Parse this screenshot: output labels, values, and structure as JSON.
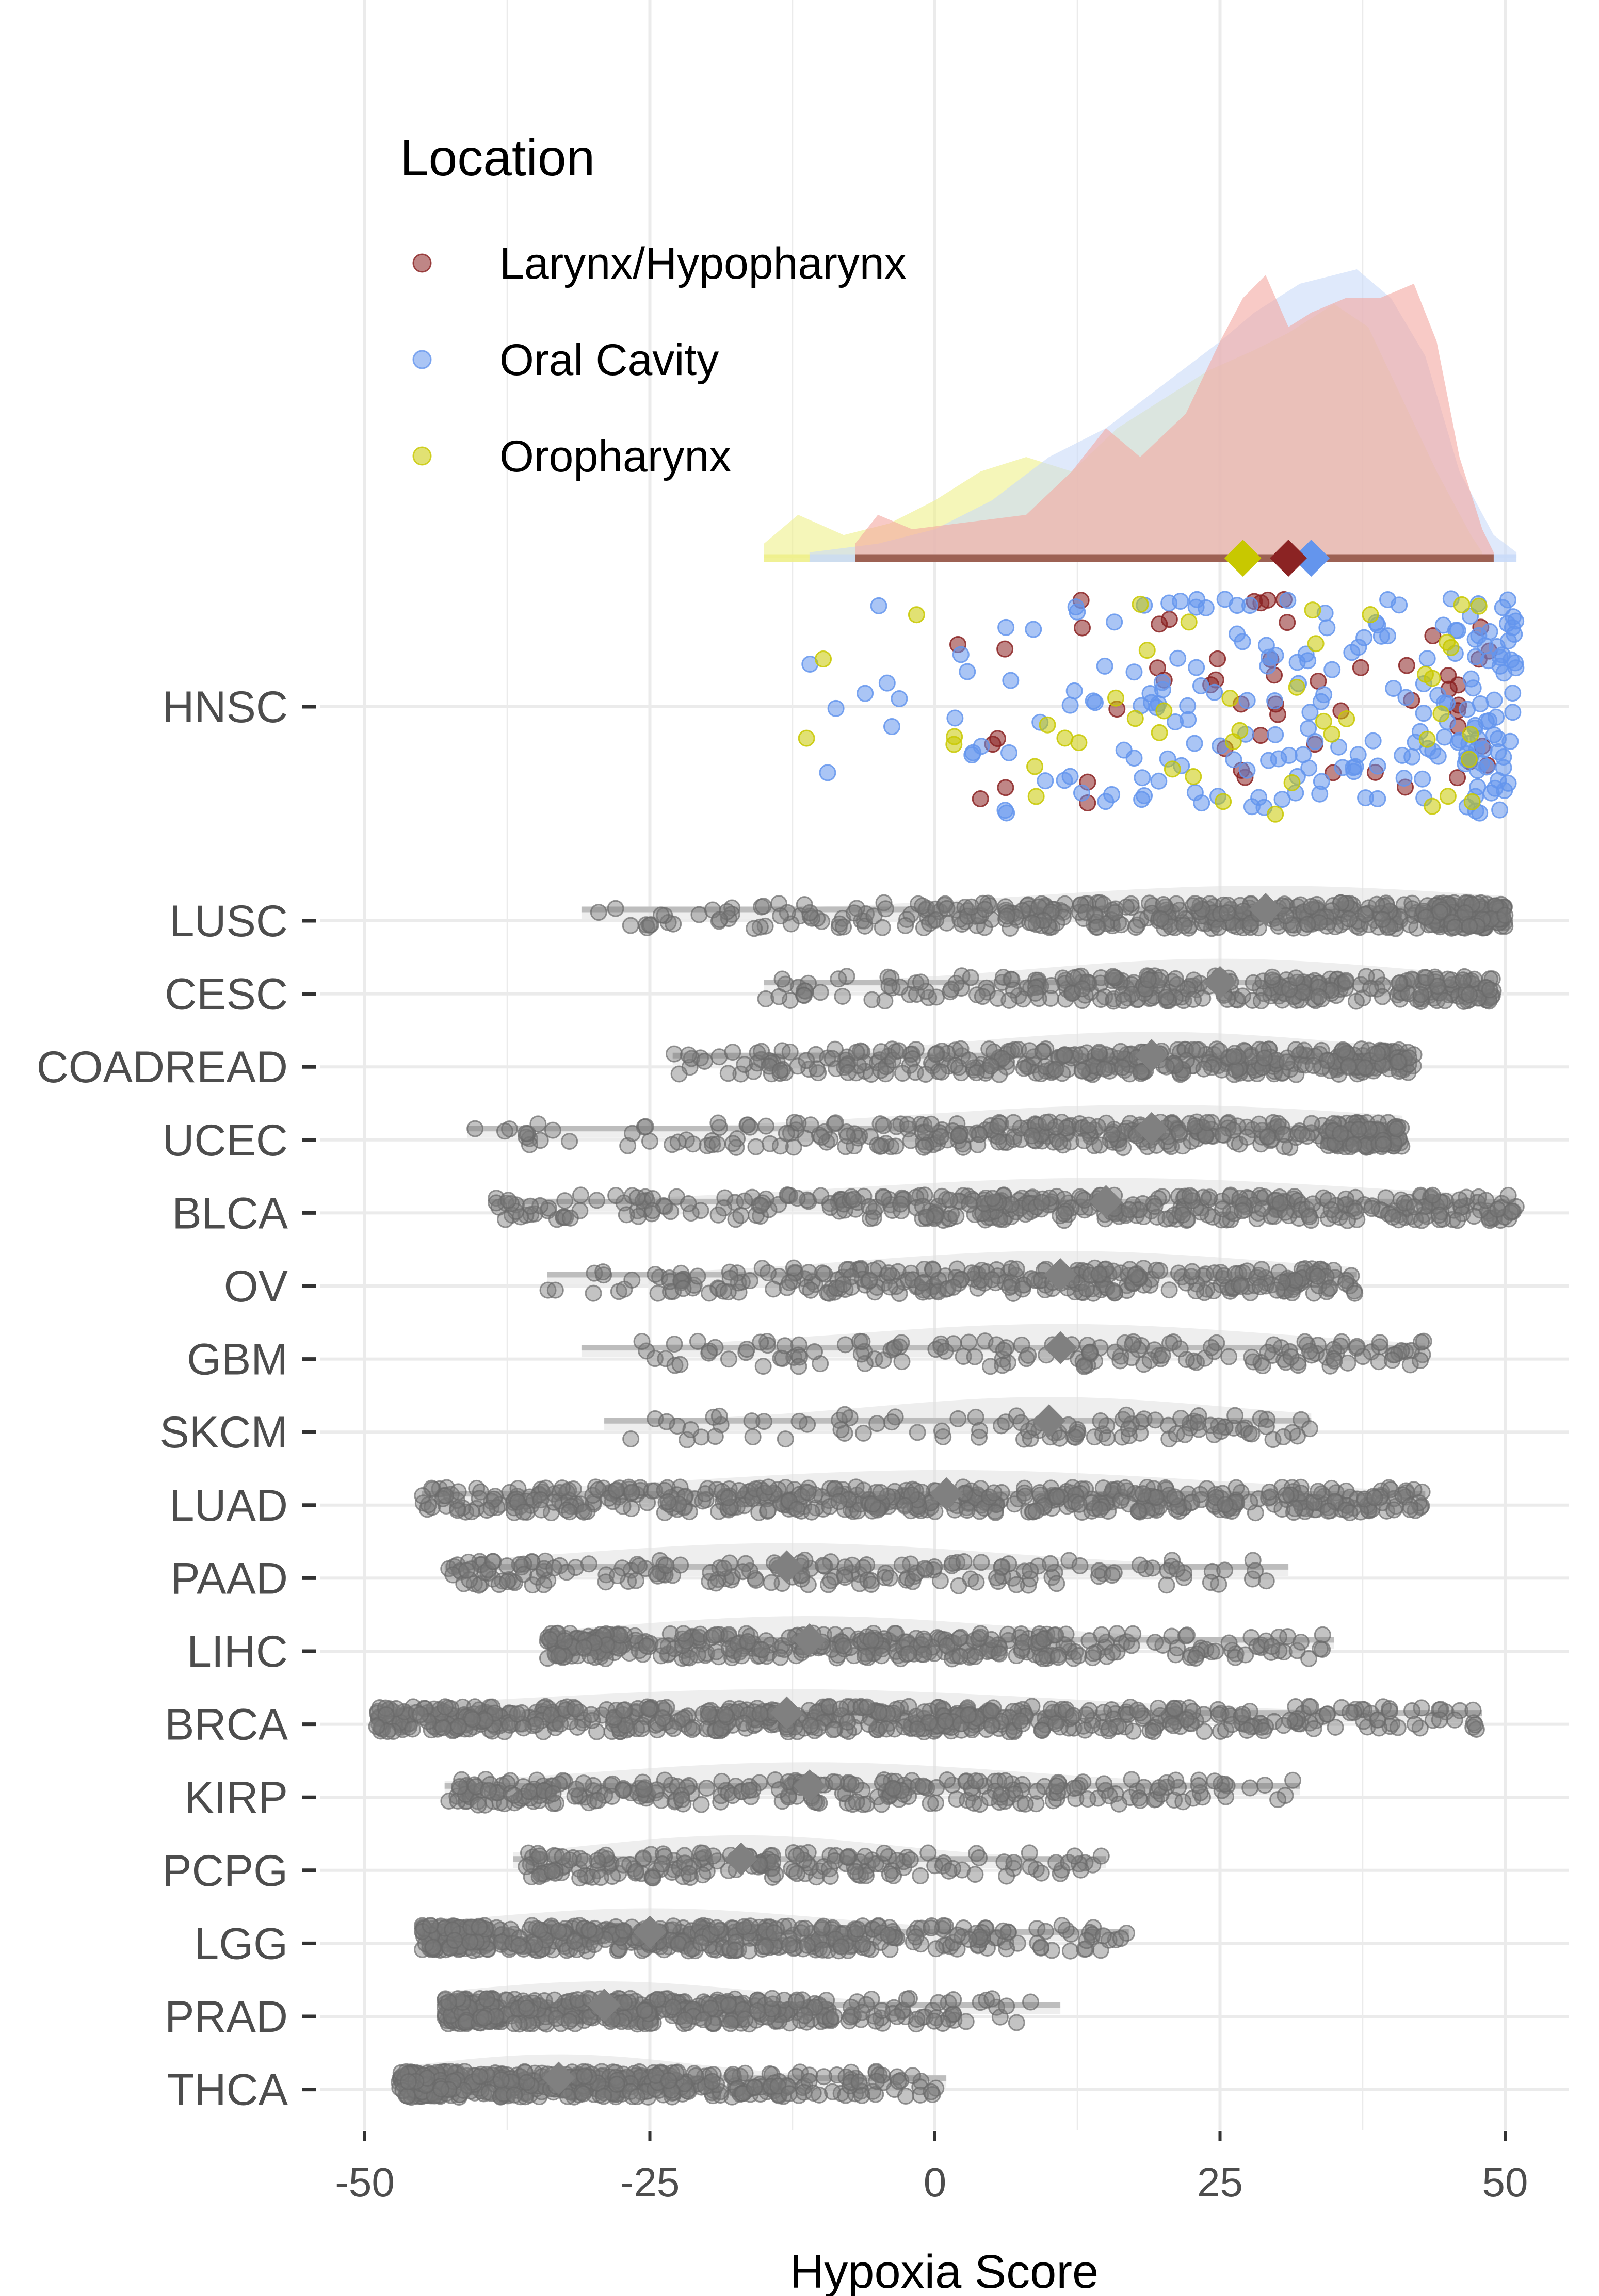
{
  "chart_data": {
    "type": "raincloud",
    "title": "",
    "xlabel": "Hypoxia Score",
    "ylabel": "",
    "xlim": [
      -52,
      53
    ],
    "x_ticks": [
      "-50",
      "-25",
      "0",
      "25",
      "50"
    ],
    "x_tick_values": [
      -50,
      -25,
      0,
      25,
      50
    ],
    "grid": true,
    "legend": {
      "title": "Location",
      "position": "top-left",
      "entries": [
        {
          "label": "Larynx/Hypopharynx",
          "color": "#8b2323"
        },
        {
          "label": "Oral Cavity",
          "color": "#6495ed"
        },
        {
          "label": "Oropharynx",
          "color": "#c8c800"
        }
      ]
    },
    "hnsc": {
      "label": "HNSC",
      "groups": [
        {
          "name": "Larynx/Hypopharynx",
          "color": "#8b2323",
          "fill": "#f4a6a0",
          "min": -7,
          "max": 49,
          "median": 31,
          "n": 55,
          "density": [
            [
              -7,
              0.05
            ],
            [
              -5,
              0.15
            ],
            [
              -2,
              0.1
            ],
            [
              2,
              0.12
            ],
            [
              8,
              0.15
            ],
            [
              12,
              0.3
            ],
            [
              15,
              0.45
            ],
            [
              18,
              0.35
            ],
            [
              22,
              0.5
            ],
            [
              25,
              0.75
            ],
            [
              27,
              0.9
            ],
            [
              29,
              0.98
            ],
            [
              31,
              0.8
            ],
            [
              33,
              0.85
            ],
            [
              36,
              0.9
            ],
            [
              39,
              0.9
            ],
            [
              42,
              0.95
            ],
            [
              44,
              0.75
            ],
            [
              46,
              0.35
            ],
            [
              48,
              0.1
            ],
            [
              49,
              0.02
            ]
          ]
        },
        {
          "name": "Oral Cavity",
          "color": "#6495ed",
          "fill": "#c9daf8",
          "min": -11,
          "max": 51,
          "median": 33,
          "n": 220,
          "density": [
            [
              -11,
              0.02
            ],
            [
              -5,
              0.05
            ],
            [
              0,
              0.1
            ],
            [
              5,
              0.2
            ],
            [
              10,
              0.35
            ],
            [
              15,
              0.45
            ],
            [
              20,
              0.6
            ],
            [
              25,
              0.75
            ],
            [
              28,
              0.85
            ],
            [
              32,
              0.95
            ],
            [
              35,
              0.98
            ],
            [
              37,
              1.0
            ],
            [
              40,
              0.9
            ],
            [
              43,
              0.7
            ],
            [
              46,
              0.3
            ],
            [
              49,
              0.08
            ],
            [
              51,
              0.02
            ]
          ]
        },
        {
          "name": "Oropharynx",
          "color": "#c8c800",
          "fill": "#eef08a",
          "min": -15,
          "max": 48,
          "median": 27,
          "n": 45,
          "density": [
            [
              -15,
              0.05
            ],
            [
              -12,
              0.15
            ],
            [
              -8,
              0.08
            ],
            [
              -4,
              0.12
            ],
            [
              0,
              0.2
            ],
            [
              4,
              0.3
            ],
            [
              8,
              0.35
            ],
            [
              12,
              0.3
            ],
            [
              16,
              0.45
            ],
            [
              20,
              0.55
            ],
            [
              24,
              0.65
            ],
            [
              28,
              0.72
            ],
            [
              31,
              0.78
            ],
            [
              35,
              0.88
            ],
            [
              38,
              0.8
            ],
            [
              41,
              0.55
            ],
            [
              44,
              0.3
            ],
            [
              47,
              0.08
            ],
            [
              48,
              0.02
            ]
          ]
        }
      ]
    },
    "series": [
      {
        "name": "LUSC",
        "min": -31,
        "max": 50,
        "median": 29,
        "n": 500
      },
      {
        "name": "CESC",
        "min": -15,
        "max": 49,
        "median": 25,
        "n": 300
      },
      {
        "name": "COADREAD",
        "min": -23,
        "max": 42,
        "median": 19,
        "n": 380
      },
      {
        "name": "UCEC",
        "min": -41,
        "max": 41,
        "median": 19,
        "n": 360
      },
      {
        "name": "BLCA",
        "min": -39,
        "max": 51,
        "median": 15,
        "n": 400
      },
      {
        "name": "OV",
        "min": -34,
        "max": 37,
        "median": 11,
        "n": 300
      },
      {
        "name": "GBM",
        "min": -31,
        "max": 43,
        "median": 11,
        "n": 150
      },
      {
        "name": "SKCM",
        "min": -29,
        "max": 33,
        "median": 10,
        "n": 100
      },
      {
        "name": "LUAD",
        "min": -45,
        "max": 43,
        "median": 1,
        "n": 510
      },
      {
        "name": "PAAD",
        "min": -43,
        "max": 31,
        "median": -13,
        "n": 180
      },
      {
        "name": "LIHC",
        "min": -34,
        "max": 35,
        "median": -11,
        "n": 370
      },
      {
        "name": "BRCA",
        "min": -49,
        "max": 48,
        "median": -13,
        "n": 1000
      },
      {
        "name": "KIRP",
        "min": -43,
        "max": 32,
        "median": -11,
        "n": 280
      },
      {
        "name": "PCPG",
        "min": -37,
        "max": 15,
        "median": -17,
        "n": 180
      },
      {
        "name": "LGG",
        "min": -45,
        "max": 17,
        "median": -25,
        "n": 510
      },
      {
        "name": "PRAD",
        "min": -43,
        "max": 11,
        "median": -29,
        "n": 490
      },
      {
        "name": "THCA",
        "min": -47,
        "max": 1,
        "median": -33,
        "n": 500
      }
    ]
  }
}
